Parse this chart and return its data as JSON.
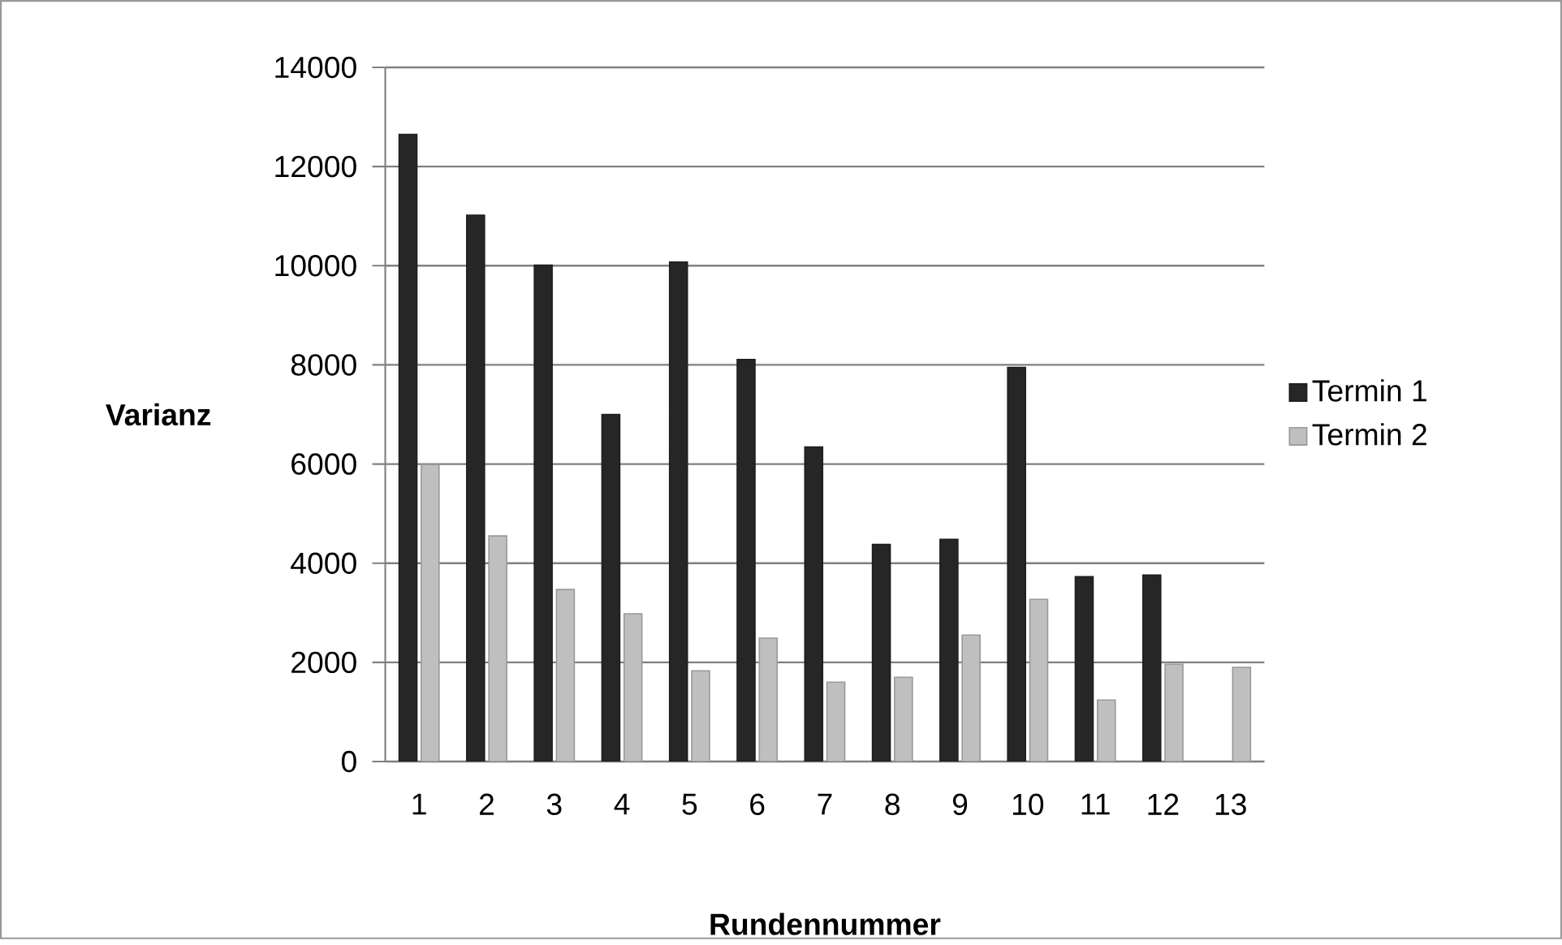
{
  "chart_data": {
    "type": "bar",
    "xlabel": "Rundennummer",
    "ylabel": "Varianz",
    "categories": [
      "1",
      "2",
      "3",
      "4",
      "5",
      "6",
      "7",
      "8",
      "9",
      "10",
      "11",
      "12",
      "13"
    ],
    "series": [
      {
        "name": "Termin 1",
        "color": "#262626",
        "values": [
          12650,
          11020,
          10010,
          7000,
          10075,
          8110,
          6345,
          4380,
          4480,
          7950,
          3730,
          3760,
          null
        ]
      },
      {
        "name": "Termin 2",
        "color": "#bfbfbf",
        "values": [
          5990,
          4550,
          3470,
          2980,
          1830,
          2490,
          1600,
          1700,
          2550,
          3270,
          1240,
          1960,
          1900
        ]
      }
    ],
    "ylim": [
      0,
      14000
    ],
    "yticks": [
      0,
      2000,
      4000,
      6000,
      8000,
      10000,
      12000,
      14000
    ],
    "grid": "y",
    "legend": "right"
  }
}
